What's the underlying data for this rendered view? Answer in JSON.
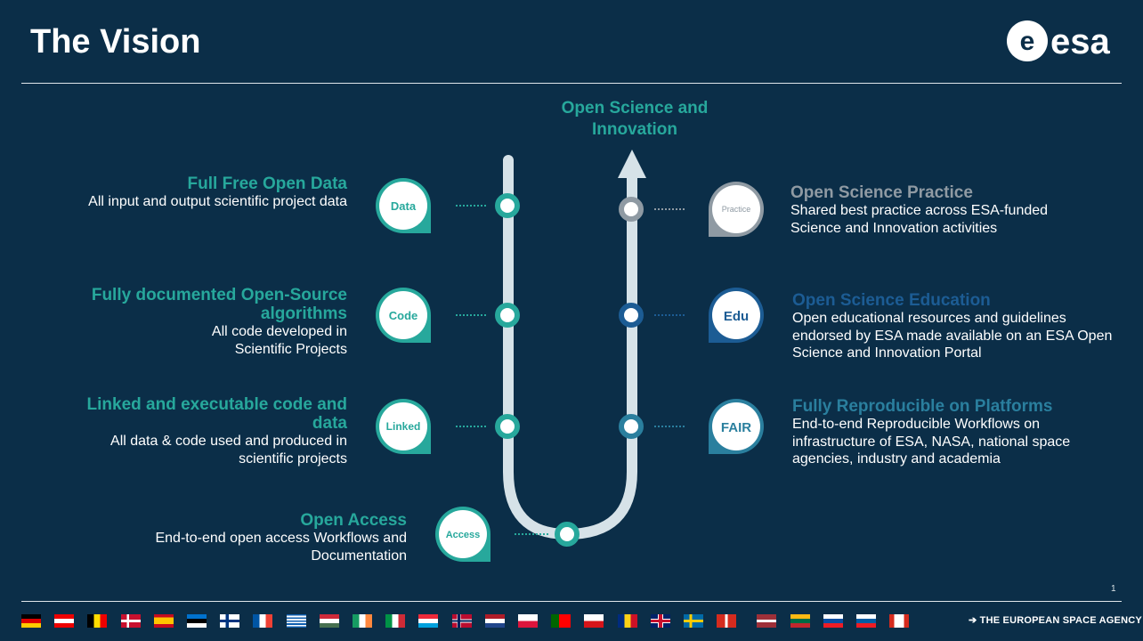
{
  "title": "The Vision",
  "logo_text": "esa",
  "goal": "Open  Science and Innovation",
  "left_items": [
    {
      "id": "data",
      "badge": "Data",
      "heading": "Full Free Open Data",
      "desc": "All input and output scientific project data",
      "color": "#27a89c"
    },
    {
      "id": "code",
      "badge": "Code",
      "heading": "Fully documented Open-Source algorithms",
      "desc": "All code developed in Scientific Projects",
      "color": "#27a89c"
    },
    {
      "id": "linked",
      "badge": "Linked",
      "heading": "Linked and executable code and data",
      "desc": "All data & code used and produced in scientific projects",
      "color": "#27a89c"
    },
    {
      "id": "access",
      "badge": "Access",
      "heading": "Open Access",
      "desc": "End-to-end open access Workflows and Documentation",
      "color": "#27a89c"
    }
  ],
  "right_items": [
    {
      "id": "practice",
      "badge": "Practice",
      "heading": "Open Science Practice",
      "desc": "Shared best practice across ESA-funded Science and Innovation activities",
      "color": "#8f9aa3"
    },
    {
      "id": "edu",
      "badge": "Edu",
      "heading": "Open Science Education",
      "desc": "Open educational resources and guidelines endorsed by ESA made available on an ESA Open Science and Innovation Portal",
      "color": "#1c5c94"
    },
    {
      "id": "fair",
      "badge": "FAIR",
      "heading": "Fully Reproducible on Platforms",
      "desc": "End-to-end  Reproducible Workflows on infrastructure of ESA, NASA, national space agencies, industry and academia",
      "color": "#2a7f9e"
    }
  ],
  "page_number": "1",
  "tagline": "➔ THE EUROPEAN SPACE AGENCY",
  "flags": [
    "germany",
    "austria",
    "belgium",
    "denmark",
    "spain",
    "estonia",
    "finland",
    "france",
    "greece",
    "hungary",
    "ireland",
    "italy",
    "luxembourg",
    "norway",
    "netherlands",
    "poland",
    "portugal",
    "czech-republic",
    "romania",
    "united-kingdom",
    "sweden",
    "switzerland",
    "latvia",
    "lithuania",
    "slovakia",
    "slovenia",
    "canada"
  ]
}
